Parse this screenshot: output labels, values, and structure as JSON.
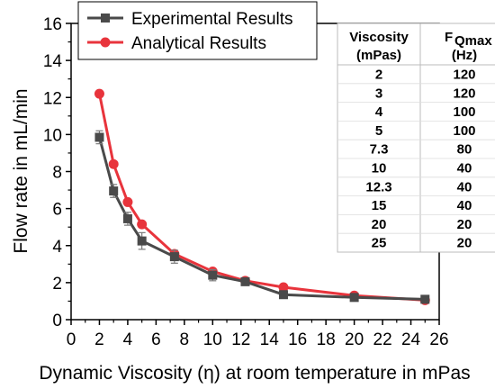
{
  "chart_data": {
    "type": "line",
    "xlabel": "Dynamic Viscosity (η) at room temperature in mPas",
    "ylabel": "Flow rate in mL/min",
    "xlim": [
      0,
      26
    ],
    "ylim": [
      0,
      16
    ],
    "xticks": [
      "0",
      "2",
      "4",
      "6",
      "8",
      "10",
      "12",
      "14",
      "16",
      "18",
      "20",
      "22",
      "24",
      "26"
    ],
    "yticks": [
      "0",
      "2",
      "4",
      "6",
      "8",
      "10",
      "12",
      "14",
      "16"
    ],
    "grid": false,
    "legend_position": "top-left",
    "series": [
      {
        "name": "Experimental Results",
        "color": "#4a4a4a",
        "marker": "square",
        "x": [
          2,
          3,
          4,
          5,
          7.3,
          10,
          12.3,
          15,
          20,
          25
        ],
        "y": [
          9.85,
          6.95,
          5.45,
          4.25,
          3.4,
          2.4,
          2.05,
          1.35,
          1.2,
          1.1
        ],
        "error": [
          0.35,
          0.35,
          0.35,
          0.45,
          0.35,
          0.3,
          0.15,
          0.1,
          0.15,
          0.2
        ]
      },
      {
        "name": "Analytical Results",
        "color": "#e8343c",
        "marker": "circle",
        "x": [
          2,
          3,
          4,
          5,
          7.3,
          10,
          12.3,
          15,
          20,
          25
        ],
        "y": [
          12.2,
          8.4,
          6.35,
          5.15,
          3.55,
          2.6,
          2.1,
          1.75,
          1.3,
          1.05
        ]
      }
    ],
    "table": {
      "headers": [
        {
          "main": "Viscosity",
          "sub": "",
          "unit": "(mPas)"
        },
        {
          "main": "F",
          "sub": "Qmax",
          "unit": "(Hz)"
        }
      ],
      "rows": [
        [
          "2",
          "120"
        ],
        [
          "3",
          "120"
        ],
        [
          "4",
          "100"
        ],
        [
          "5",
          "100"
        ],
        [
          "7.3",
          "80"
        ],
        [
          "10",
          "40"
        ],
        [
          "12.3",
          "40"
        ],
        [
          "15",
          "40"
        ],
        [
          "20",
          "20"
        ],
        [
          "25",
          "20"
        ]
      ]
    }
  }
}
